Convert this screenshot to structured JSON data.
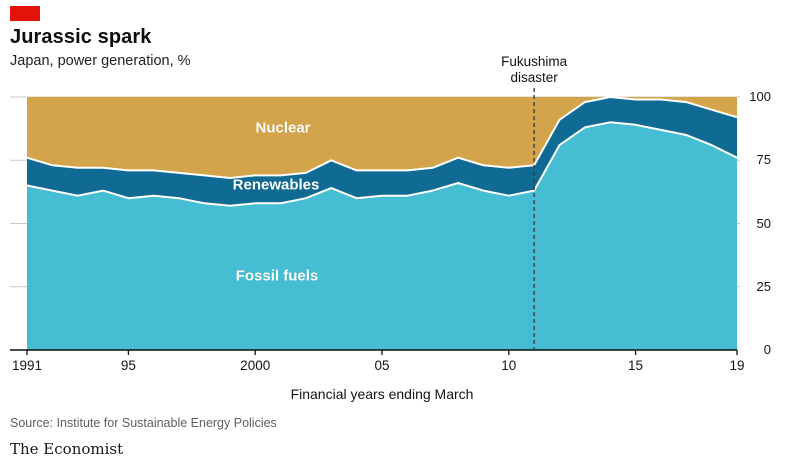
{
  "brand": {
    "tag_color": "#E3120B",
    "footer": "The Economist"
  },
  "header": {
    "title": "Jurassic spark",
    "subtitle": "Japan, power generation, %"
  },
  "annotation": {
    "line1": "Fukushima",
    "line2": "disaster",
    "year": 2011
  },
  "source": "Source: Institute for Sustainable Energy Policies",
  "chart_data": {
    "type": "area",
    "stacked": true,
    "title": "Jurassic spark",
    "subtitle": "Japan, power generation, %",
    "xlabel": "Financial years ending March",
    "ylabel": "",
    "ylim": [
      0,
      100
    ],
    "grid": true,
    "legend_position": "labels-inside-areas",
    "x": [
      1991,
      1992,
      1993,
      1994,
      1995,
      1996,
      1997,
      1998,
      1999,
      2000,
      2001,
      2002,
      2003,
      2004,
      2005,
      2006,
      2007,
      2008,
      2009,
      2010,
      2011,
      2012,
      2013,
      2014,
      2015,
      2016,
      2017,
      2018,
      2019
    ],
    "series": [
      {
        "name": "Fossil fuels",
        "color": "#45BDD3",
        "values": [
          65,
          63,
          61,
          63,
          60,
          61,
          60,
          58,
          57,
          58,
          58,
          60,
          64,
          60,
          61,
          61,
          63,
          66,
          63,
          61,
          63,
          81,
          88,
          90,
          89,
          87,
          85,
          81,
          76
        ]
      },
      {
        "name": "Renewables",
        "color": "#0F6B93",
        "values": [
          11,
          10,
          11,
          9,
          11,
          10,
          10,
          11,
          11,
          11,
          11,
          10,
          11,
          11,
          10,
          10,
          9,
          10,
          10,
          11,
          10,
          10,
          10,
          10,
          10,
          12,
          13,
          14,
          16
        ]
      },
      {
        "name": "Nuclear",
        "color": "#D3A449",
        "values": [
          24,
          27,
          28,
          28,
          29,
          29,
          30,
          31,
          32,
          31,
          31,
          30,
          25,
          29,
          29,
          29,
          28,
          24,
          27,
          28,
          27,
          9,
          2,
          0,
          1,
          1,
          2,
          5,
          8
        ]
      }
    ],
    "xticks": [
      {
        "year": 1991,
        "label": "1991"
      },
      {
        "year": 1995,
        "label": "95"
      },
      {
        "year": 2000,
        "label": "2000"
      },
      {
        "year": 2005,
        "label": "05"
      },
      {
        "year": 2010,
        "label": "10"
      },
      {
        "year": 2015,
        "label": "15"
      },
      {
        "year": 2019,
        "label": "19"
      }
    ],
    "yticks": [
      0,
      25,
      50,
      75,
      100
    ]
  }
}
